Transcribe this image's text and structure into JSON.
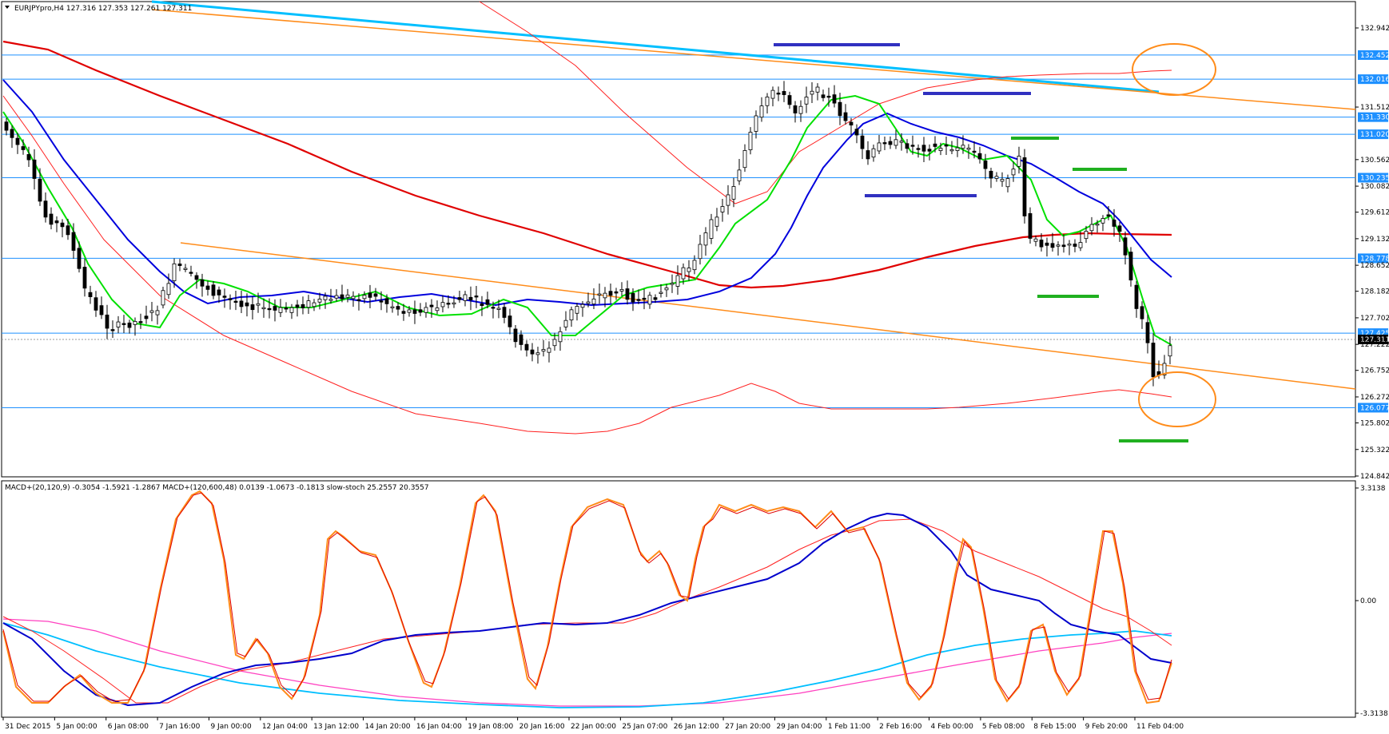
{
  "header": {
    "symbol_line": "EURJPYpro,H4  127.316 127.353 127.261 127.311",
    "indicator_line": "MACD+(20,120,9) -0.3054 -1.5921 -1.2867  MACD+(120,600,48) 0.0139 -1.0673 -0.1813  slow-stoch 25.2557 20.3557"
  },
  "price_axis": {
    "ticks": [
      "132.942",
      "131.512",
      "130.562",
      "130.082",
      "129.612",
      "129.132",
      "128.652",
      "128.182",
      "127.702",
      "127.222",
      "126.752",
      "126.272",
      "125.802",
      "125.322",
      "124.842"
    ],
    "levels": [
      {
        "label": "132.452",
        "value": 132.452
      },
      {
        "label": "132.016",
        "value": 132.016
      },
      {
        "label": "131.330",
        "value": 131.33
      },
      {
        "label": "131.020",
        "value": 131.02
      },
      {
        "label": "130.235",
        "value": 130.235
      },
      {
        "label": "128.778",
        "value": 128.778
      },
      {
        "label": "127.425",
        "value": 127.425
      },
      {
        "label": "126.077",
        "value": 126.077
      }
    ],
    "current_price": "127.311"
  },
  "indicator_axis": {
    "ticks": [
      "3.3138",
      "0.00",
      "-3.3138"
    ]
  },
  "time_axis": {
    "labels": [
      "31 Dec 2015",
      "5 Jan 00:00",
      "6 Jan 08:00",
      "7 Jan 16:00",
      "9 Jan 00:00",
      "12 Jan 04:00",
      "13 Jan 12:00",
      "14 Jan 20:00",
      "16 Jan 04:00",
      "19 Jan 08:00",
      "20 Jan 16:00",
      "22 Jan 00:00",
      "25 Jan 07:00",
      "26 Jan 12:00",
      "27 Jan 20:00",
      "29 Jan 04:00",
      "1 Feb 11:00",
      "2 Feb 16:00",
      "4 Feb 00:00",
      "5 Feb 08:00",
      "8 Feb 15:00",
      "9 Feb 20:00",
      "11 Feb 04:00"
    ]
  },
  "colors": {
    "bull_candle": "#ffffff",
    "bear_candle": "#000000",
    "level_line": "#1e90ff",
    "level_tag": "#1e90ff",
    "trendline": "#ff8c1a",
    "trendline_cyan": "#00bfff",
    "ma_green": "#00e000",
    "ma_blue": "#0000dd",
    "ma_red": "#e00000",
    "envelope_thin": "#ff2020",
    "marker_blue": "#3030c0",
    "marker_green": "#20b020",
    "circle": "#ff8c1a",
    "macd_blue": "#0000cc",
    "macd_cyan": "#00bfff",
    "macd_magenta": "#ff40c0",
    "stoch_orange": "#ff8c1a"
  }
}
